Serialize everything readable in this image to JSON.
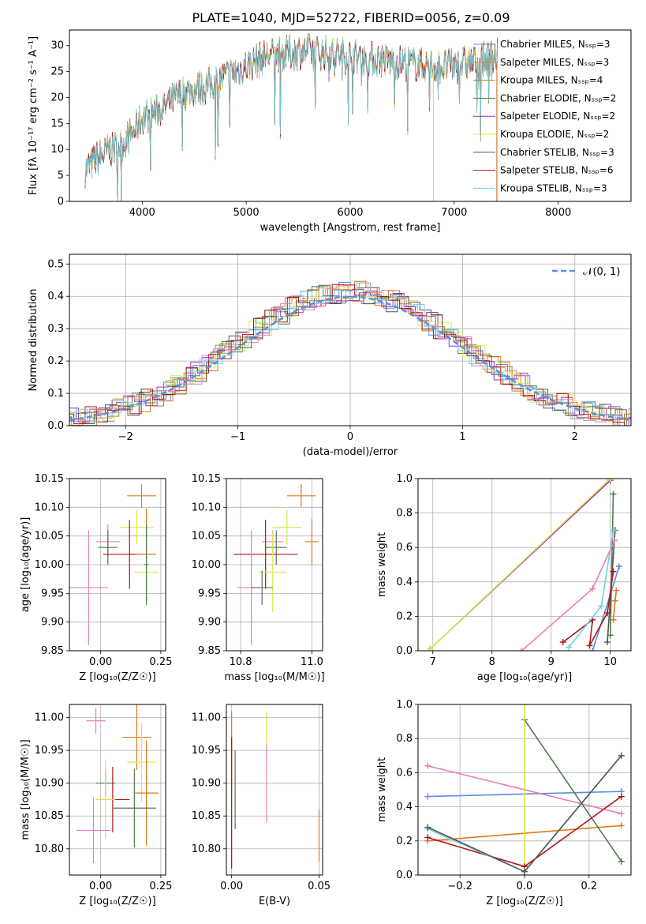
{
  "title": "PLATE=1040, MJD=52722, FIBERID=0056, z=0.09",
  "colors": {
    "chabrier_miles": "#5b8ee0",
    "salpeter_miles": "#e07a1f",
    "kroupa_miles": "#b5800a",
    "chabrier_elodie": "#4f7a4f",
    "salpeter_elodie": "#9a2fc9",
    "kroupa_elodie": "#d9e84a",
    "chabrier_stelib": "#555555",
    "salpeter_stelib": "#b01515",
    "kroupa_stelib": "#6fd4dc",
    "salpeter_stelib_light": "#e87fb8",
    "normal": "#5b8ee0"
  },
  "chart_data": [
    {
      "id": "spectrum",
      "type": "line",
      "xlabel": "wavelength [Angstrom, rest frame]",
      "ylabel": "Flux [fλ 10⁻¹⁷ erg cm⁻² s⁻¹ A⁻¹]",
      "xlim": [
        3300,
        8700
      ],
      "ylim": [
        0,
        33
      ],
      "xticks": [
        "4000",
        "5000",
        "6000",
        "7000",
        "8000"
      ],
      "yticks": [
        "0",
        "5",
        "10",
        "15",
        "20",
        "25",
        "30"
      ],
      "grid": false,
      "legend_position": "top-right",
      "continuum": {
        "x": [
          3450,
          3550,
          3700,
          3800,
          3900,
          4000,
          4200,
          4400,
          4600,
          4800,
          5000,
          5200,
          5400,
          5600,
          5800,
          6000,
          6200,
          6400,
          6600,
          6800,
          7000,
          7200,
          7400
        ],
        "y": [
          6,
          8,
          10,
          11,
          13,
          16,
          18,
          21,
          22,
          24,
          26,
          28,
          28.5,
          29,
          28.5,
          28,
          27.5,
          27,
          26.5,
          26,
          26,
          27,
          28
        ]
      },
      "series": [
        {
          "name": "Chabrier MILES, N_SSP=3"
        },
        {
          "name": "Salpeter MILES, N_SSP=3"
        },
        {
          "name": "Kroupa MILES, N_SSP=4"
        },
        {
          "name": "Chabrier ELODIE, N_SSP=2"
        },
        {
          "name": "Salpeter ELODIE, N_SSP=2"
        },
        {
          "name": "Kroupa ELODIE, N_SSP=2"
        },
        {
          "name": "Chabrier STELIB, N_SSP=3"
        },
        {
          "name": "Salpeter STELIB, N_SSP=6"
        },
        {
          "name": "Kroupa STELIB, N_SSP=3"
        }
      ]
    },
    {
      "id": "residuals",
      "type": "line",
      "xlabel": "(data-model)/error",
      "ylabel": "Normed distribution",
      "xlim": [
        -2.5,
        2.5
      ],
      "ylim": [
        0,
        0.53
      ],
      "xticks": [
        "−2",
        "−1",
        "0",
        "1",
        "2"
      ],
      "yticks": [
        "0.0",
        "0.1",
        "0.2",
        "0.3",
        "0.4",
        "0.5"
      ],
      "grid": true,
      "legend_position": "top-right",
      "legend": "𝒩(0, 1)",
      "histogram_bin_width": 0.1
    },
    {
      "id": "age_vs_Z",
      "type": "scatter",
      "xlabel": "Z [log₁₀(Z/Z☉)]",
      "ylabel": "age  [log₁₀(age/yr)]",
      "xlim": [
        -0.13,
        0.27
      ],
      "ylim": [
        9.85,
        10.15
      ],
      "xticks": [
        "0.00",
        "0.25"
      ],
      "yticks": [
        "9.85",
        "9.90",
        "9.95",
        "10.00",
        "10.05",
        "10.10",
        "10.15"
      ],
      "grid": true,
      "points": [
        {
          "x": 0.17,
          "y": 10.12,
          "xerr": 0.06,
          "yerr": 0.02
        },
        {
          "x": 0.15,
          "y": 10.065,
          "xerr": 0.07,
          "yerr": 0.03
        },
        {
          "x": 0.03,
          "y": 10.04,
          "xerr": 0.05,
          "yerr": 0.03
        },
        {
          "x": 0.03,
          "y": 10.03,
          "xerr": 0.04,
          "yerr": 0.03
        },
        {
          "x": 0.12,
          "y": 10.018,
          "xerr": 0.11,
          "yerr": 0.06
        },
        {
          "x": 0.19,
          "y": 10.018,
          "xerr": 0.04,
          "yerr": 0.08
        },
        {
          "x": 0.19,
          "y": 9.987,
          "xerr": 0.05,
          "yerr": 0.05
        },
        {
          "x": -0.05,
          "y": 9.96,
          "xerr": 0.08,
          "yerr": 0.1
        },
        {
          "x": 0.19,
          "y": 10.0,
          "xerr": 0.01,
          "yerr": 0.07
        }
      ]
    },
    {
      "id": "age_vs_mass",
      "type": "scatter",
      "xlabel": "mass [log₁₀(M/M☉)]",
      "ylabel": "",
      "xlim": [
        10.76,
        11.03
      ],
      "ylim": [
        9.85,
        10.15
      ],
      "xticks": [
        "10.8",
        "11.0"
      ],
      "yticks": [
        "9.85",
        "9.90",
        "9.95",
        "10.00",
        "10.05",
        "10.10",
        "10.15"
      ],
      "grid": true,
      "points": [
        {
          "x": 10.97,
          "y": 10.12,
          "xerr": 0.04,
          "yerr": 0.02
        },
        {
          "x": 10.93,
          "y": 10.065,
          "xerr": 0.04,
          "yerr": 0.03
        },
        {
          "x": 10.89,
          "y": 10.04,
          "xerr": 0.03,
          "yerr": 0.02
        },
        {
          "x": 10.9,
          "y": 10.03,
          "xerr": 0.03,
          "yerr": 0.03
        },
        {
          "x": 10.87,
          "y": 10.018,
          "xerr": 0.09,
          "yerr": 0.06
        },
        {
          "x": 11.0,
          "y": 10.04,
          "xerr": 0.02,
          "yerr": 0.04
        },
        {
          "x": 10.89,
          "y": 9.987,
          "xerr": 0.04,
          "yerr": 0.07
        },
        {
          "x": 10.83,
          "y": 9.96,
          "xerr": 0.04,
          "yerr": 0.1
        },
        {
          "x": 10.86,
          "y": 9.96,
          "xerr": 0.03,
          "yerr": 0.03
        }
      ]
    },
    {
      "id": "weight_vs_age",
      "type": "line",
      "xlabel": "age  [log₁₀(age/yr)]",
      "ylabel": "mass weight",
      "xlim": [
        6.75,
        10.35
      ],
      "ylim": [
        0,
        1
      ],
      "xticks": [
        "7",
        "8",
        "9",
        "10"
      ],
      "yticks": [
        "0.0",
        "0.2",
        "0.4",
        "0.6",
        "0.8",
        "1.0"
      ],
      "grid": true,
      "series": [
        {
          "color": "chabrier_miles",
          "x": [
            9.7,
            10.15
          ],
          "y": [
            0.0,
            0.49
          ]
        },
        {
          "color": "salpeter_miles",
          "x": [
            10.05,
            10.1,
            10.08
          ],
          "y": [
            0.18,
            0.35,
            0.29
          ]
        },
        {
          "color": "chabrier_elodie",
          "x": [
            10.0,
            10.05
          ],
          "y": [
            0.09,
            0.91
          ]
        },
        {
          "color": "salpeter_elodie",
          "x": [
            6.95,
            10.0
          ],
          "y": [
            0.01,
            0.99
          ]
        },
        {
          "color": "kroupa_elodie",
          "x": [
            6.95,
            10.0
          ],
          "y": [
            0.01,
            1.0
          ]
        },
        {
          "color": "chabrier_stelib",
          "x": [
            9.95,
            10.08
          ],
          "y": [
            0.05,
            0.7
          ]
        },
        {
          "color": "salpeter_stelib",
          "x": [
            9.2,
            9.7,
            9.65,
            9.95,
            10.05
          ],
          "y": [
            0.05,
            0.18,
            0.03,
            0.22,
            0.46
          ]
        },
        {
          "color": "kroupa_stelib",
          "x": [
            9.3,
            9.85,
            10.05
          ],
          "y": [
            0.02,
            0.26,
            0.7
          ]
        },
        {
          "color": "salpeter_stelib_light",
          "x": [
            8.5,
            9.7,
            10.07
          ],
          "y": [
            0.0,
            0.36,
            0.64
          ]
        }
      ]
    },
    {
      "id": "mass_vs_Z",
      "type": "scatter",
      "xlabel": "Z [log₁₀(Z/Z☉)]",
      "ylabel": "mass [log₁₀(M/M☉)]",
      "xlim": [
        -0.13,
        0.27
      ],
      "ylim": [
        10.76,
        11.02
      ],
      "xticks": [
        "0.00",
        "0.25"
      ],
      "yticks": [
        "10.80",
        "10.85",
        "10.90",
        "10.95",
        "11.00"
      ],
      "grid": true,
      "points": [
        {
          "x": 0.15,
          "y": 10.97,
          "xerr": 0.06,
          "yerr": 0.05
        },
        {
          "x": 0.17,
          "y": 10.932,
          "xerr": 0.06,
          "yerr": 0.06
        },
        {
          "x": -0.02,
          "y": 10.995,
          "xerr": 0.04,
          "yerr": 0.02
        },
        {
          "x": 0.02,
          "y": 10.9,
          "xerr": 0.04,
          "yerr": 0.02
        },
        {
          "x": 0.05,
          "y": 10.875,
          "xerr": 0.07,
          "yerr": 0.05
        },
        {
          "x": 0.19,
          "y": 10.885,
          "xerr": 0.05,
          "yerr": 0.08
        },
        {
          "x": 0.02,
          "y": 10.875,
          "xerr": 0.04,
          "yerr": 0.06
        },
        {
          "x": -0.03,
          "y": 10.828,
          "xerr": 0.07,
          "yerr": 0.05
        },
        {
          "x": 0.14,
          "y": 10.862,
          "xerr": 0.09,
          "yerr": 0.06
        }
      ]
    },
    {
      "id": "mass_vs_ebv",
      "type": "scatter",
      "xlabel": "E(B-V)",
      "ylabel": "",
      "xlim": [
        -0.003,
        0.052
      ],
      "ylim": [
        10.76,
        11.02
      ],
      "xticks": [
        "0.00",
        "0.05"
      ],
      "yticks": [
        "10.80",
        "10.85",
        "10.90",
        "10.95",
        "11.00"
      ],
      "grid": true,
      "points": [
        {
          "x": 0.0,
          "y": 10.95,
          "xerr": 0.0,
          "yerr": 0.06
        },
        {
          "x": 0.02,
          "y": 10.97,
          "xerr": 0.0,
          "yerr": 0.04
        },
        {
          "x": 0.02,
          "y": 10.9,
          "xerr": 0.0,
          "yerr": 0.06
        },
        {
          "x": 0.002,
          "y": 10.89,
          "xerr": 0.0,
          "yerr": 0.06
        },
        {
          "x": 0.0,
          "y": 10.87,
          "xerr": 0.0,
          "yerr": 0.1
        },
        {
          "x": 0.05,
          "y": 10.82,
          "xerr": 0.0,
          "yerr": 0.04
        }
      ]
    },
    {
      "id": "weight_vs_Z",
      "type": "line",
      "xlabel": "Z [log₁₀(Z/Z☉)]",
      "ylabel": "mass weight",
      "xlim": [
        -0.33,
        0.33
      ],
      "ylim": [
        0,
        1
      ],
      "xticks": [
        "−0.2",
        "0.0",
        "0.2"
      ],
      "yticks": [
        "0.0",
        "0.2",
        "0.4",
        "0.6",
        "0.8",
        "1.0"
      ],
      "grid": true,
      "series": [
        {
          "color": "chabrier_miles",
          "x": [
            -0.3,
            0.3
          ],
          "y": [
            0.46,
            0.49
          ]
        },
        {
          "color": "salpeter_miles",
          "x": [
            -0.3,
            0.3
          ],
          "y": [
            0.2,
            0.29
          ]
        },
        {
          "color": "salpeter_stelib_light",
          "x": [
            -0.3,
            0.3
          ],
          "y": [
            0.64,
            0.36
          ]
        },
        {
          "color": "chabrier_elodie",
          "x": [
            0.0,
            0.3
          ],
          "y": [
            0.91,
            0.08
          ]
        },
        {
          "color": "kroupa_elodie",
          "x": [
            0.0,
            0.0
          ],
          "y": [
            0.0,
            1.0
          ]
        },
        {
          "color": "salpeter_stelib",
          "x": [
            -0.3,
            0.0,
            0.3
          ],
          "y": [
            0.22,
            0.05,
            0.46
          ]
        },
        {
          "color": "kroupa_stelib",
          "x": [
            -0.3,
            0.0,
            0.3
          ],
          "y": [
            0.27,
            0.02,
            0.7
          ]
        },
        {
          "color": "chabrier_stelib",
          "x": [
            -0.3,
            0.0,
            0.3
          ],
          "y": [
            0.28,
            0.02,
            0.7
          ]
        }
      ]
    }
  ]
}
